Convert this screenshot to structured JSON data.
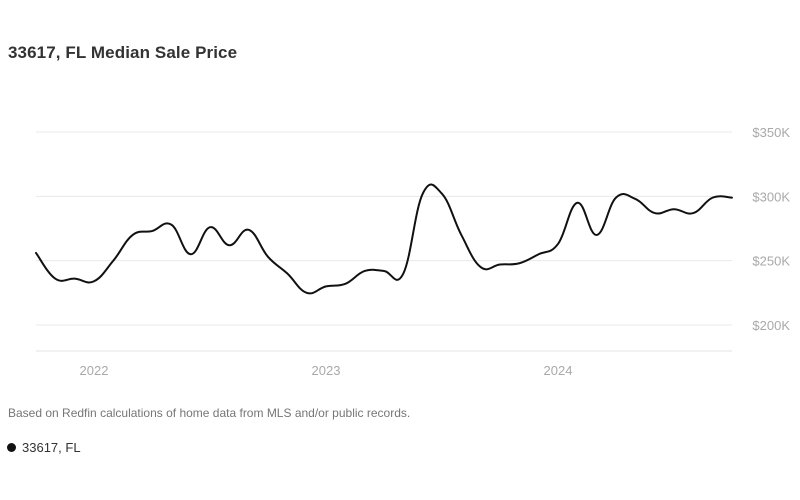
{
  "chart_data": {
    "type": "line",
    "title": "33617, FL Median Sale Price",
    "footnote": "Based on Redfin calculations of home data from MLS and/or public records.",
    "series": [
      {
        "name": "33617, FL",
        "color": "#111111",
        "x": [
          "2021-10",
          "2021-11",
          "2021-12",
          "2022-01",
          "2022-02",
          "2022-03",
          "2022-04",
          "2022-05",
          "2022-06",
          "2022-07",
          "2022-08",
          "2022-09",
          "2022-10",
          "2022-11",
          "2022-12",
          "2023-01",
          "2023-02",
          "2023-03",
          "2023-04",
          "2023-05",
          "2023-06",
          "2023-07",
          "2023-08",
          "2023-09",
          "2023-10",
          "2023-11",
          "2023-12",
          "2024-01",
          "2024-02",
          "2024-03",
          "2024-04",
          "2024-05",
          "2024-06",
          "2024-07",
          "2024-08",
          "2024-09",
          "2024-10"
        ],
        "values": [
          256,
          236,
          236,
          234,
          250,
          270,
          273,
          278,
          255,
          276,
          262,
          274,
          253,
          240,
          225,
          230,
          232,
          242,
          242,
          240,
          302,
          302,
          270,
          245,
          247,
          248,
          255,
          263,
          295,
          270,
          299,
          298,
          287,
          290,
          287,
          299,
          299
        ]
      }
    ],
    "x_ticks": [
      "2022",
      "2023",
      "2024"
    ],
    "y_ticks": [
      {
        "value": 200,
        "label": "$200K"
      },
      {
        "value": 250,
        "label": "$250K"
      },
      {
        "value": 300,
        "label": "$300K"
      },
      {
        "value": 350,
        "label": "$350K"
      }
    ],
    "ylim": [
      180,
      350
    ],
    "grid": true,
    "legend_position": "bottom-left"
  }
}
